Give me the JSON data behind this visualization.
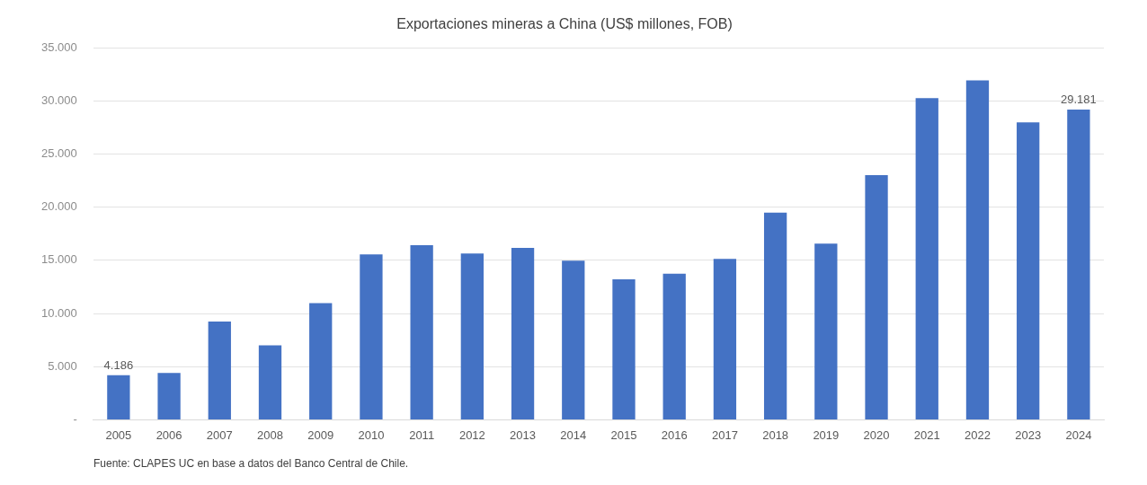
{
  "chart_data": {
    "type": "bar",
    "title": "Exportaciones mineras a China (US$ millones, FOB)",
    "categories": [
      "2005",
      "2006",
      "2007",
      "2008",
      "2009",
      "2010",
      "2011",
      "2012",
      "2013",
      "2014",
      "2015",
      "2016",
      "2017",
      "2018",
      "2019",
      "2020",
      "2021",
      "2022",
      "2023",
      "2024"
    ],
    "values": [
      4186,
      4400,
      9250,
      7000,
      10980,
      15570,
      16430,
      15640,
      16170,
      14970,
      13210,
      13740,
      15140,
      19490,
      16570,
      23020,
      30270,
      31940,
      27980,
      29181
    ],
    "value_labels": [
      "4.186",
      null,
      null,
      null,
      null,
      null,
      null,
      null,
      null,
      null,
      null,
      null,
      null,
      null,
      null,
      null,
      null,
      null,
      null,
      "29.181"
    ],
    "color": "#4472c4",
    "ylim": [
      0,
      35000
    ],
    "yticks": [
      {
        "value": 0,
        "label": "-"
      },
      {
        "value": 5000,
        "label": "5.000"
      },
      {
        "value": 10000,
        "label": "10.000"
      },
      {
        "value": 15000,
        "label": "15.000"
      },
      {
        "value": 20000,
        "label": "20.000"
      },
      {
        "value": 25000,
        "label": "25.000"
      },
      {
        "value": 30000,
        "label": "30.000"
      },
      {
        "value": 35000,
        "label": "35.000"
      }
    ],
    "grid": "y",
    "legend": false,
    "annotations": [
      "Fuente: CLAPES UC en base a datos del Banco Central de Chile."
    ]
  }
}
